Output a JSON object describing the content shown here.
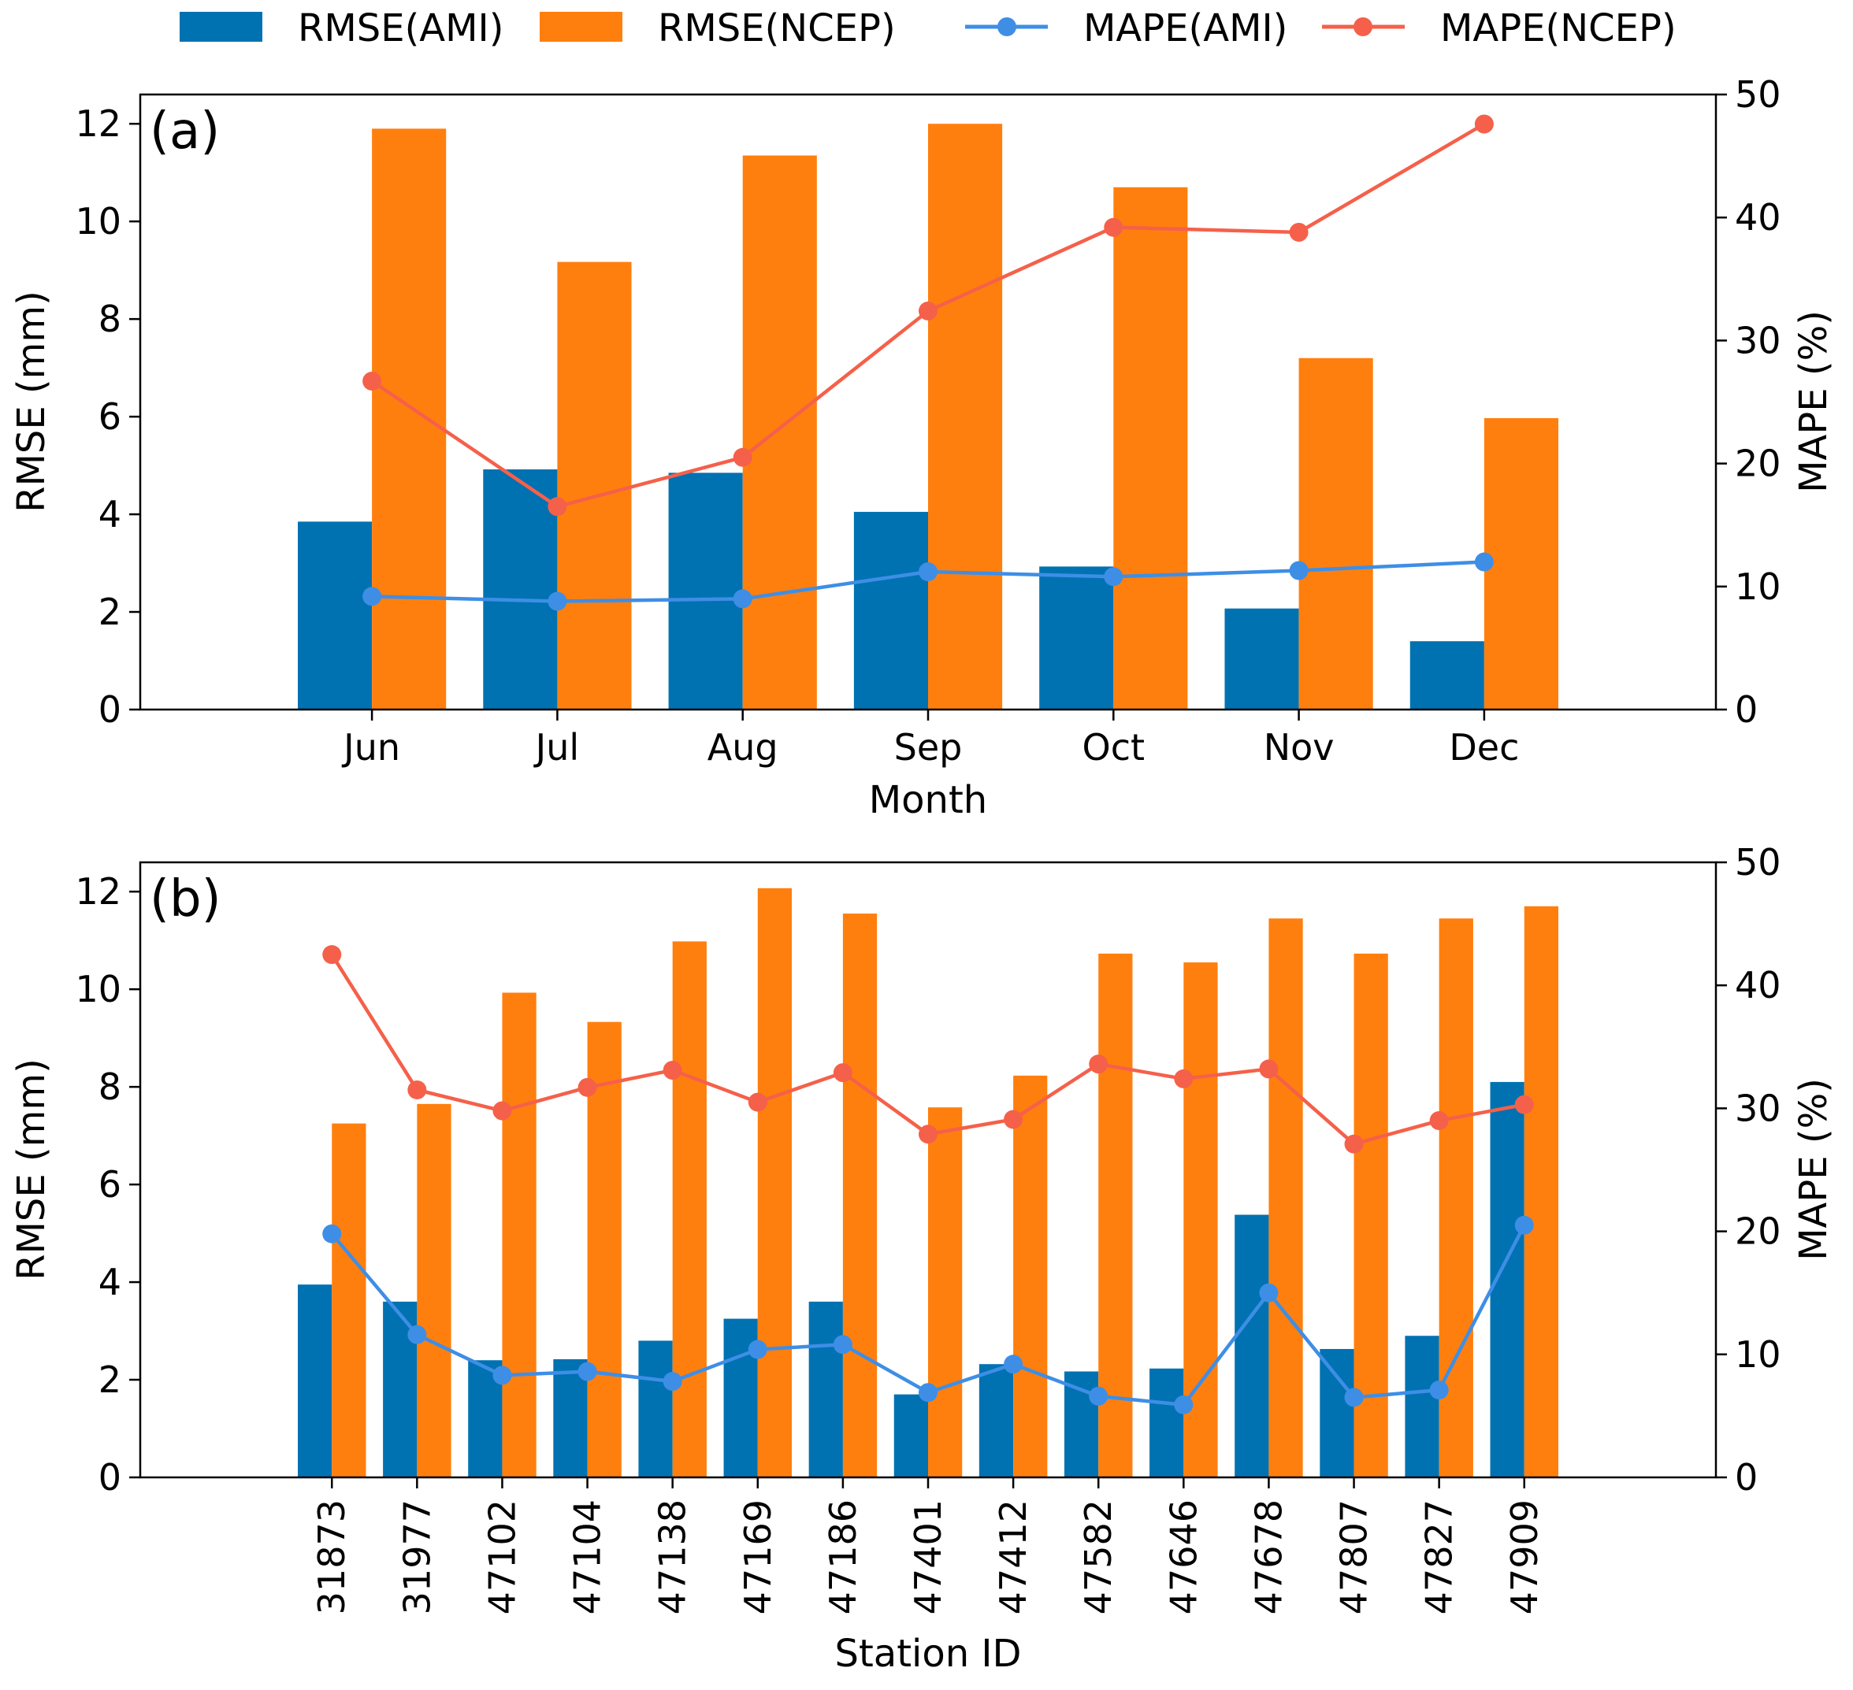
{
  "legend": {
    "entries": [
      {
        "label": "RMSE(AMI)",
        "kind": "bar",
        "series": "rmse_ami"
      },
      {
        "label": "RMSE(NCEP)",
        "kind": "bar",
        "series": "rmse_ncep"
      },
      {
        "label": "MAPE(AMI)",
        "kind": "line",
        "series": "mape_ami"
      },
      {
        "label": "MAPE(NCEP)",
        "kind": "line",
        "series": "mape_ncep"
      }
    ]
  },
  "colors": {
    "rmse_ami": "#0072b2",
    "rmse_ncep": "#ff7f0e",
    "mape_ami": "#3e8ee6",
    "mape_ncep": "#f5604a"
  },
  "chart_data": [
    {
      "type": "bar",
      "panel_label": "(a)",
      "title": "",
      "xlabel": "Month",
      "ylabel": "RMSE (mm)",
      "y2label": "MAPE (%)",
      "ylim": [
        0,
        12.6
      ],
      "y2lim": [
        0,
        50
      ],
      "yticks": [
        0,
        2,
        4,
        6,
        8,
        10,
        12
      ],
      "y2ticks": [
        0,
        10,
        20,
        30,
        40,
        50
      ],
      "categories": [
        "Jun",
        "Jul",
        "Aug",
        "Sep",
        "Oct",
        "Nov",
        "Dec"
      ],
      "series": [
        {
          "name": "RMSE(AMI)",
          "key": "rmse_ami",
          "axis": "left",
          "type": "bar",
          "values": [
            3.85,
            4.92,
            4.85,
            4.05,
            2.93,
            2.07,
            1.4
          ]
        },
        {
          "name": "RMSE(NCEP)",
          "key": "rmse_ncep",
          "axis": "left",
          "type": "bar",
          "values": [
            11.9,
            9.17,
            11.35,
            12.0,
            10.7,
            7.2,
            5.97
          ]
        },
        {
          "name": "MAPE(AMI)",
          "key": "mape_ami",
          "axis": "right",
          "type": "line",
          "values": [
            9.2,
            8.8,
            9.0,
            11.2,
            10.8,
            11.3,
            12.0
          ]
        },
        {
          "name": "MAPE(NCEP)",
          "key": "mape_ncep",
          "axis": "right",
          "type": "line",
          "values": [
            26.7,
            16.5,
            20.5,
            32.4,
            39.2,
            38.8,
            47.6
          ]
        }
      ]
    },
    {
      "type": "bar",
      "panel_label": "(b)",
      "title": "",
      "xlabel": "Station ID",
      "ylabel": "RMSE (mm)",
      "y2label": "MAPE (%)",
      "ylim": [
        0,
        12.6
      ],
      "y2lim": [
        0,
        50
      ],
      "yticks": [
        0,
        2,
        4,
        6,
        8,
        10,
        12
      ],
      "y2ticks": [
        0,
        10,
        20,
        30,
        40,
        50
      ],
      "categories": [
        "31873",
        "31977",
        "47102",
        "47104",
        "47138",
        "47169",
        "47186",
        "47401",
        "47412",
        "47582",
        "47646",
        "47678",
        "47807",
        "47827",
        "47909"
      ],
      "series": [
        {
          "name": "RMSE(AMI)",
          "key": "rmse_ami",
          "axis": "left",
          "type": "bar",
          "values": [
            3.95,
            3.6,
            2.4,
            2.42,
            2.8,
            3.25,
            3.6,
            1.7,
            2.32,
            2.17,
            2.23,
            5.38,
            2.63,
            2.9,
            8.1
          ]
        },
        {
          "name": "RMSE(NCEP)",
          "key": "rmse_ncep",
          "axis": "left",
          "type": "bar",
          "values": [
            7.25,
            7.65,
            9.93,
            9.33,
            10.98,
            12.07,
            11.55,
            7.58,
            8.23,
            10.73,
            10.55,
            11.45,
            10.73,
            11.45,
            11.7
          ]
        },
        {
          "name": "MAPE(AMI)",
          "key": "mape_ami",
          "axis": "right",
          "type": "line",
          "values": [
            19.8,
            11.6,
            8.3,
            8.6,
            7.8,
            10.4,
            10.8,
            6.9,
            9.2,
            6.6,
            5.9,
            15.0,
            6.5,
            7.1,
            20.5
          ]
        },
        {
          "name": "MAPE(NCEP)",
          "key": "mape_ncep",
          "axis": "right",
          "type": "line",
          "values": [
            42.5,
            31.5,
            29.8,
            31.7,
            33.1,
            30.5,
            32.9,
            27.9,
            29.1,
            33.6,
            32.4,
            33.2,
            27.1,
            29.0,
            30.3
          ]
        }
      ]
    }
  ]
}
